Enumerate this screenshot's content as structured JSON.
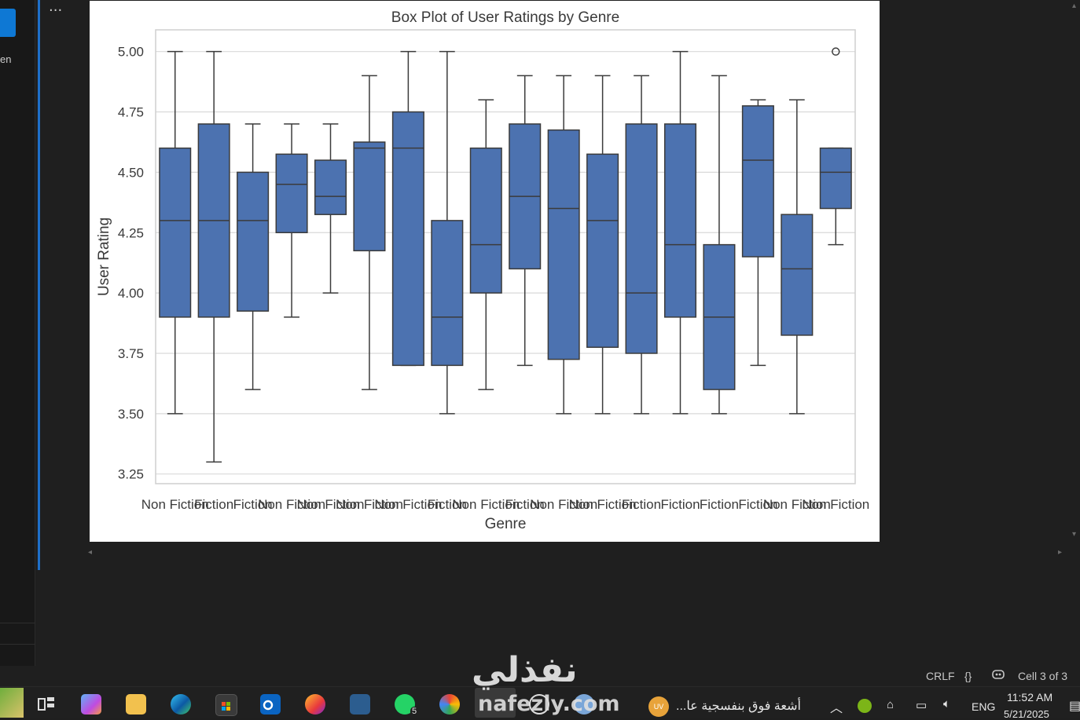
{
  "editor": {
    "left_label": "en",
    "more_actions": "...",
    "status": {
      "line_ending": "CRLF",
      "braces": "{}",
      "cell_info": "Cell 3 of 3"
    }
  },
  "chart_data": {
    "type": "box",
    "title": "Box Plot of User Ratings by Genre",
    "xlabel": "Genre",
    "ylabel": "User Rating",
    "ylim": [
      3.21,
      5.09
    ],
    "yticks": [
      "3.25",
      "3.50",
      "3.75",
      "4.00",
      "4.25",
      "4.50",
      "4.75",
      "5.00"
    ],
    "grid": true,
    "color": "#4c72b0",
    "categories": [
      "Non Fiction",
      "Fiction",
      "Fiction",
      "Non Fiction",
      "Non Fiction",
      "Non Fiction",
      "Non Fiction",
      "Fiction",
      "Non Fiction",
      "Fiction",
      "Non Fiction",
      "Non Fiction",
      "Fiction",
      "Fiction",
      "Fiction",
      "Fiction",
      "Non Fiction",
      "Non Fiction"
    ],
    "boxes": [
      {
        "whislo": 3.5,
        "q1": 3.9,
        "med": 4.3,
        "q3": 4.6,
        "whishi": 5.0
      },
      {
        "whislo": 3.3,
        "q1": 3.9,
        "med": 4.3,
        "q3": 4.7,
        "whishi": 5.0
      },
      {
        "whislo": 3.6,
        "q1": 3.925,
        "med": 4.3,
        "q3": 4.5,
        "whishi": 4.7
      },
      {
        "whislo": 3.9,
        "q1": 4.25,
        "med": 4.45,
        "q3": 4.575,
        "whishi": 4.7
      },
      {
        "whislo": 4.0,
        "q1": 4.325,
        "med": 4.4,
        "q3": 4.55,
        "whishi": 4.7
      },
      {
        "whislo": 3.6,
        "q1": 4.175,
        "med": 4.6,
        "q3": 4.625,
        "whishi": 4.9
      },
      {
        "whislo": 3.7,
        "q1": 3.7,
        "med": 4.6,
        "q3": 4.75,
        "whishi": 5.0
      },
      {
        "whislo": 3.5,
        "q1": 3.7,
        "med": 3.9,
        "q3": 4.3,
        "whishi": 5.0
      },
      {
        "whislo": 3.6,
        "q1": 4.0,
        "med": 4.2,
        "q3": 4.6,
        "whishi": 4.8
      },
      {
        "whislo": 3.7,
        "q1": 4.1,
        "med": 4.4,
        "q3": 4.7,
        "whishi": 4.9
      },
      {
        "whislo": 3.5,
        "q1": 3.725,
        "med": 4.35,
        "q3": 4.675,
        "whishi": 4.9
      },
      {
        "whislo": 3.5,
        "q1": 3.775,
        "med": 4.3,
        "q3": 4.575,
        "whishi": 4.9
      },
      {
        "whislo": 3.5,
        "q1": 3.75,
        "med": 4.0,
        "q3": 4.7,
        "whishi": 4.9
      },
      {
        "whislo": 3.5,
        "q1": 3.9,
        "med": 4.2,
        "q3": 4.7,
        "whishi": 5.0
      },
      {
        "whislo": 3.5,
        "q1": 3.6,
        "med": 3.9,
        "q3": 4.2,
        "whishi": 4.9
      },
      {
        "whislo": 3.7,
        "q1": 4.15,
        "med": 4.55,
        "q3": 4.775,
        "whishi": 4.8
      },
      {
        "whislo": 3.5,
        "q1": 3.825,
        "med": 4.1,
        "q3": 4.325,
        "whishi": 4.8
      },
      {
        "whislo": 4.2,
        "q1": 4.35,
        "med": 4.5,
        "q3": 4.6,
        "whishi": 4.6,
        "fliers": [
          5.0
        ]
      }
    ]
  },
  "watermark": {
    "arabic": "نفذلي",
    "latin": "nafezly.com"
  },
  "taskbar": {
    "notification_text": "أشعة فوق بنفسجية عا...",
    "weather_badge": "UV",
    "language": "ENG",
    "time": "11:52 AM",
    "date": "5/21/2025",
    "whatsapp_badge": "5"
  }
}
